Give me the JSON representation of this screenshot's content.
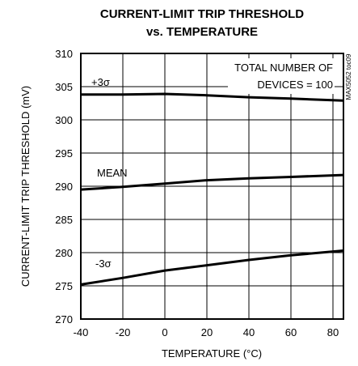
{
  "chart_data": {
    "type": "line",
    "title": [
      "CURRENT-LIMIT TRIP THRESHOLD",
      "vs. TEMPERATURE"
    ],
    "xlabel": "TEMPERATURE (°C)",
    "ylabel": "CURRENT-LIMIT TRIP THRESHOLD (mV)",
    "xlim": [
      -40,
      85
    ],
    "ylim": [
      270,
      310
    ],
    "x_ticks": [
      -40,
      -20,
      0,
      20,
      40,
      60,
      80
    ],
    "y_ticks": [
      270,
      275,
      280,
      285,
      290,
      295,
      300,
      305,
      310
    ],
    "x_tick_labels": [
      "-40",
      "-20",
      "0",
      "20",
      "40",
      "60",
      "80"
    ],
    "y_tick_labels": [
      "270",
      "275",
      "280",
      "285",
      "290",
      "295",
      "300",
      "305",
      "310"
    ],
    "grid": true,
    "annotation": [
      "TOTAL NUMBER OF",
      "DEVICES = 100"
    ],
    "figure_code": "MAX5052 toc09",
    "series": [
      {
        "name": "+3σ",
        "x": [
          -40,
          -20,
          0,
          20,
          40,
          60,
          85
        ],
        "values": [
          303.8,
          303.8,
          303.9,
          303.7,
          303.4,
          303.2,
          302.9
        ]
      },
      {
        "name": "MEAN",
        "x": [
          -40,
          -20,
          0,
          20,
          40,
          60,
          85
        ],
        "values": [
          289.5,
          289.9,
          290.4,
          290.9,
          291.2,
          291.4,
          291.7
        ]
      },
      {
        "name": "-3σ",
        "x": [
          -40,
          -20,
          0,
          20,
          40,
          60,
          85
        ],
        "values": [
          275.2,
          276.2,
          277.3,
          278.1,
          278.9,
          279.6,
          280.3
        ]
      }
    ]
  }
}
